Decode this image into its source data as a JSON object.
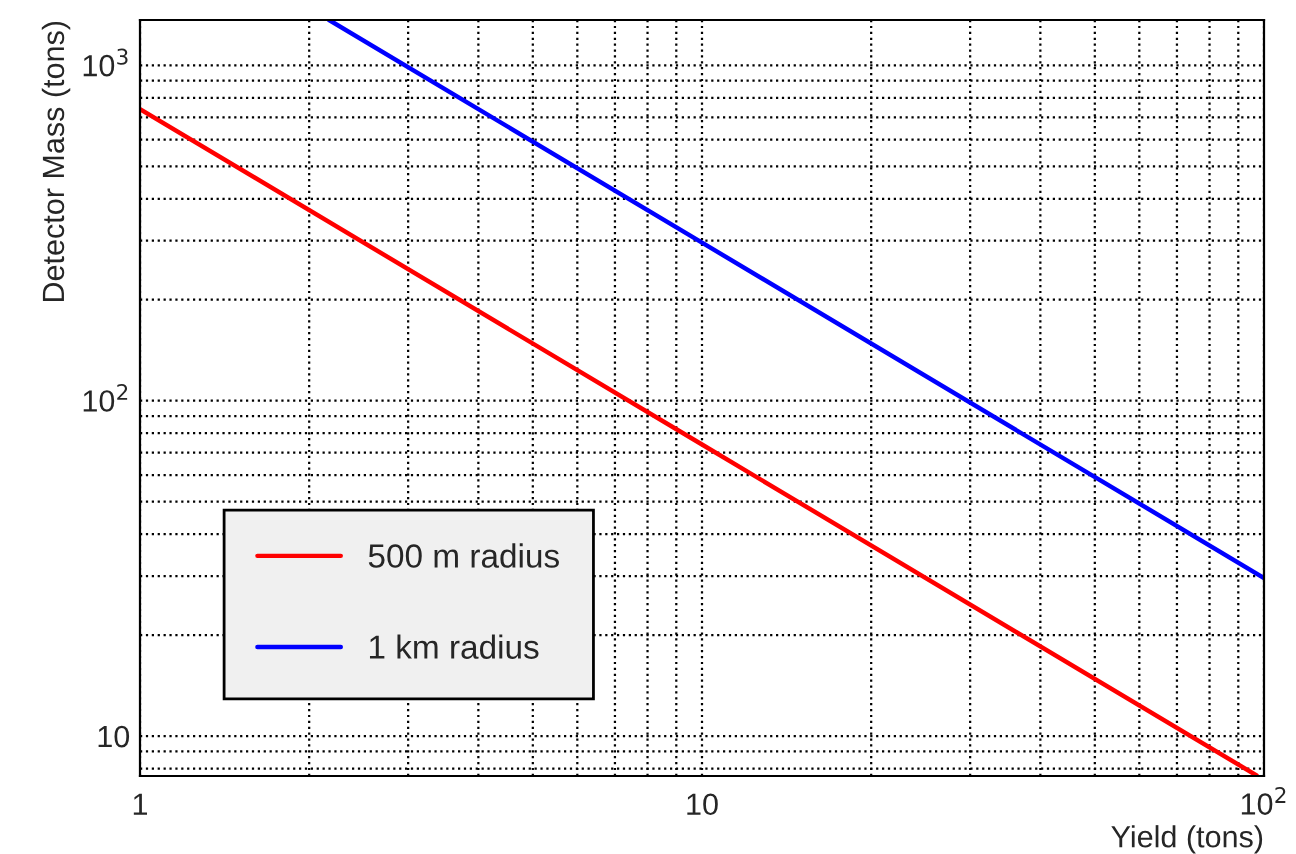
{
  "chart_data": {
    "type": "line",
    "xlabel": "Yield (tons)",
    "ylabel": "Detector Mass (tons)",
    "log": "xy",
    "xlim": [
      1,
      100
    ],
    "ylim": [
      7.6,
      1365
    ],
    "xticks": [
      1,
      10,
      {
        "value": 100,
        "label": "10$^{2}$"
      }
    ],
    "yticks": [
      10,
      {
        "value": 100,
        "label": "10$^{2}$"
      },
      {
        "value": 1000,
        "label": "10$^{3}$"
      }
    ],
    "grid": true,
    "legend": "bottom left",
    "marker": "none",
    "line_style": "solid",
    "series": [
      {
        "name": "500 m radius",
        "color": "#ff0000",
        "x": [
          1,
          10,
          97
        ],
        "values": [
          740,
          74,
          7.63
        ]
      },
      {
        "name": "1 km radius",
        "color": "#0000ff",
        "x": [
          2.17,
          10,
          100
        ],
        "values": [
          1365,
          296,
          29.6
        ]
      }
    ]
  }
}
